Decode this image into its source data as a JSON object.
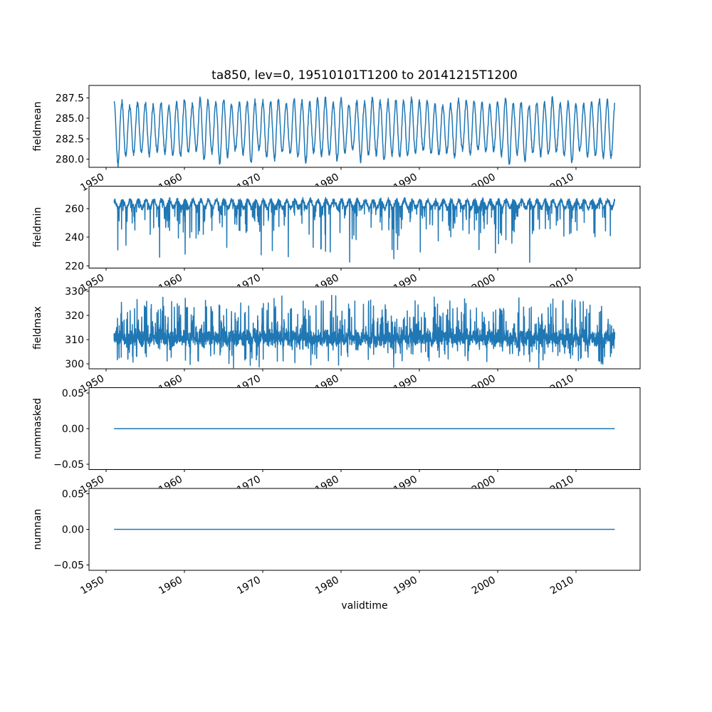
{
  "figure": {
    "title": "ta850, lev=0, 19510101T1200 to 20141215T1200",
    "background": "#ffffff",
    "line_color": "#1f77b4",
    "axes_color": "#000000"
  },
  "chart_data": {
    "type": "line",
    "title": "ta850, lev=0, 19510101T1200 to 20141215T1200",
    "xlabel": "validtime",
    "legend": "none",
    "grid": false,
    "x_axis": {
      "xlim": [
        1947.8,
        2018.2
      ],
      "data_x_range": [
        1951.0,
        2014.96
      ],
      "tick_values": [
        1950,
        1960,
        1970,
        1980,
        1990,
        2000,
        2010
      ],
      "tick_labels": [
        "1950",
        "1960",
        "1970",
        "1980",
        "1990",
        "2000",
        "2010"
      ],
      "tick_rotation_deg": 30
    },
    "subplots": [
      {
        "ylabel": "fieldmean",
        "ylim": [
          279.0,
          289.0
        ],
        "ytick_values": [
          280.0,
          282.5,
          285.0,
          287.5
        ],
        "ytick_labels": [
          "280.0",
          "282.5",
          "285.0",
          "287.5"
        ],
        "series_summary": {
          "pattern": "annual sinusoidal cycle, one cycle per year, 1951-2014",
          "mean": 283.65,
          "peak_range": [
            286.4,
            287.9
          ],
          "trough_range": [
            279.3,
            281.3
          ],
          "noise_amplitude": 0.3
        }
      },
      {
        "ylabel": "fieldmin",
        "ylim": [
          218.5,
          275.5
        ],
        "ytick_values": [
          220,
          240,
          260
        ],
        "ytick_labels": [
          "220",
          "240",
          "260"
        ],
        "series_summary": {
          "pattern": "dense noisy band with annual modulation and sporadic deep downward spikes",
          "band_center": 263.0,
          "band_top": 270.5,
          "band_noise": 2.2,
          "seasonal_amplitude": 2.7,
          "spike_min": 221.3
        }
      },
      {
        "ylabel": "fieldmax",
        "ylim": [
          298.0,
          331.7
        ],
        "ytick_values": [
          300,
          310,
          320,
          330
        ],
        "ytick_labels": [
          "300",
          "310",
          "320",
          "330"
        ],
        "series_summary": {
          "pattern": "dense noise band with frequent upward spikes and occasional downward dips",
          "band_center": 310.6,
          "band_noise": 3.6,
          "spike_max": 331.3,
          "dip_min": 298.4
        }
      },
      {
        "ylabel": "nummasked",
        "ylim": [
          -0.0575,
          0.0575
        ],
        "ytick_values": [
          -0.05,
          0.0,
          0.05
        ],
        "ytick_labels": [
          "−0.05",
          "0.00",
          "0.05"
        ],
        "series_summary": {
          "pattern": "constant",
          "constant_value": 0.0
        }
      },
      {
        "ylabel": "numnan",
        "ylim": [
          -0.0575,
          0.0575
        ],
        "ytick_values": [
          -0.05,
          0.0,
          0.05
        ],
        "ytick_labels": [
          "−0.05",
          "0.00",
          "0.05"
        ],
        "series_summary": {
          "pattern": "constant",
          "constant_value": 0.0
        }
      }
    ]
  }
}
